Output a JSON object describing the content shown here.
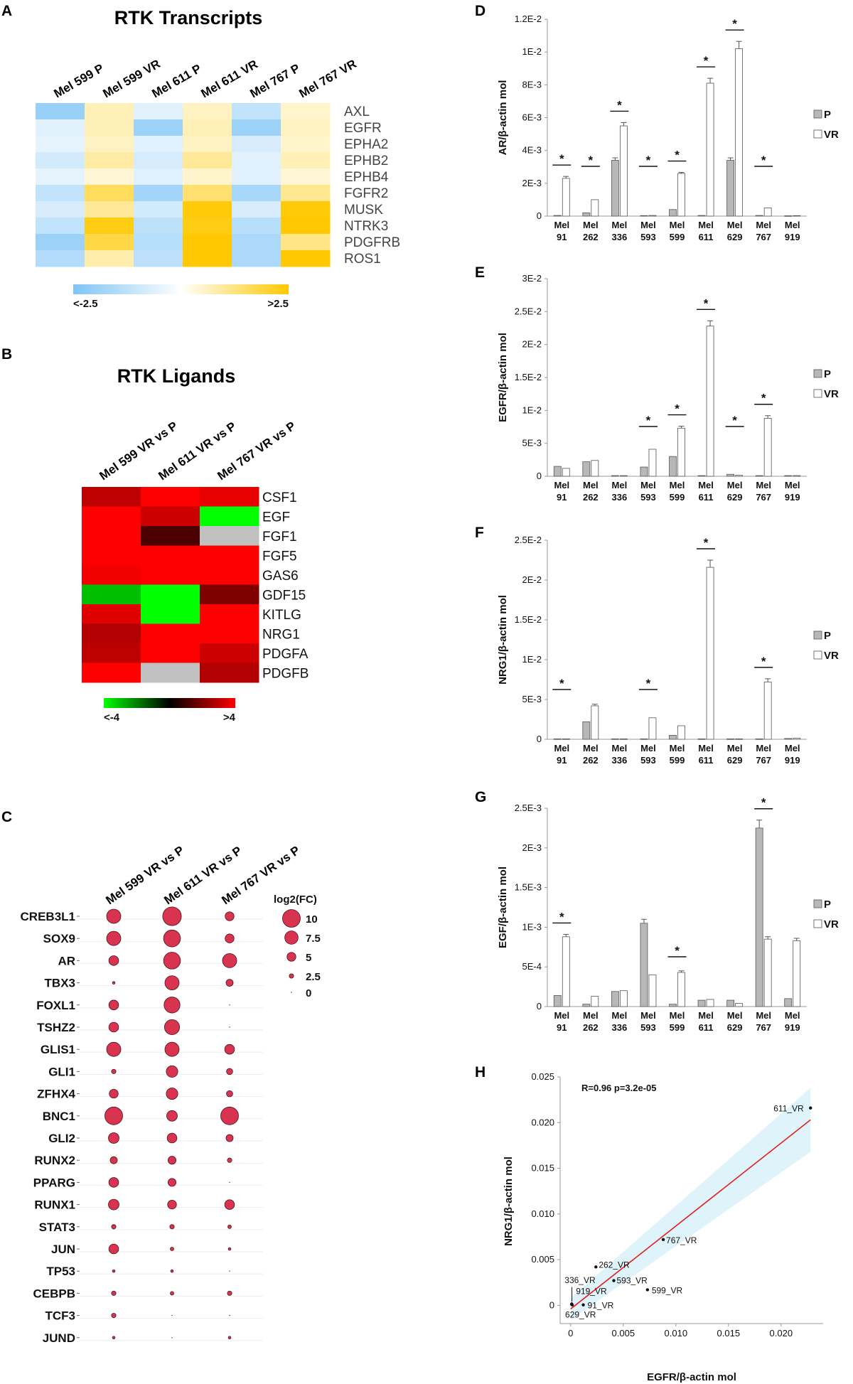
{
  "panel_labels": {
    "A": "A",
    "B": "B",
    "C": "C",
    "D": "D",
    "E": "E",
    "F": "F",
    "G": "G",
    "H": "H"
  },
  "colors": {
    "heat_low_A": "#7ec4f6",
    "heat_mid_A": "#ffffff",
    "heat_high_A": "#ffc800",
    "heat_low_B": "#00ff00",
    "heat_mid_B": "#000000",
    "heat_high_B": "#ff0000",
    "heat_na": "#c0c0c0",
    "bubble": "#d8344f",
    "bar_P": "#b8b8b8",
    "bar_VR": "#ffffff",
    "fit_line": "#e32020",
    "ci_band": "#dff3fb"
  },
  "chart_data": [
    {
      "id": "A",
      "type": "heatmap",
      "title": "RTK Transcripts",
      "columns": [
        "Mel 599 P",
        "Mel 599 VR",
        "Mel 611 P",
        "Mel 611 VR",
        "Mel 767 P",
        "Mel 767 VR"
      ],
      "rows": [
        "AXL",
        "EGFR",
        "EPHA2",
        "EPHB2",
        "EPHB4",
        "FGFR2",
        "MUSK",
        "NTRK3",
        "PDGFRB",
        "ROS1"
      ],
      "values": [
        [
          -2.0,
          0.7,
          -0.6,
          0.6,
          -1.2,
          0.5
        ],
        [
          -0.6,
          0.7,
          -1.9,
          0.7,
          -1.9,
          0.6
        ],
        [
          -0.5,
          0.6,
          -0.6,
          0.6,
          -0.8,
          0.5
        ],
        [
          -0.9,
          0.9,
          -0.8,
          1.0,
          -0.6,
          0.7
        ],
        [
          -0.5,
          0.4,
          -0.6,
          0.5,
          -0.6,
          0.4
        ],
        [
          -1.2,
          1.6,
          -1.8,
          1.4,
          -1.7,
          1.1
        ],
        [
          -0.8,
          1.0,
          -0.9,
          2.4,
          -0.8,
          2.4
        ],
        [
          -1.2,
          2.3,
          -1.3,
          2.3,
          -1.4,
          2.5
        ],
        [
          -1.9,
          1.8,
          -1.4,
          2.5,
          -1.6,
          1.2
        ],
        [
          -1.5,
          0.8,
          -1.3,
          2.5,
          -1.6,
          2.5
        ]
      ],
      "colorbar": {
        "min": -2.5,
        "max": 2.5,
        "min_label": "<-2.5",
        "max_label": ">2.5"
      }
    },
    {
      "id": "B",
      "type": "heatmap",
      "title": "RTK Ligands",
      "columns": [
        "Mel 599 VR vs P",
        "Mel 611 VR vs P",
        "Mel 767 VR vs P"
      ],
      "rows": [
        "CSF1",
        "EGF",
        "FGF1",
        "FGF5",
        "GAS6",
        "GDF15",
        "KITLG",
        "NRG1",
        "PDGFA",
        "PDGFB"
      ],
      "values": [
        [
          3.0,
          4.0,
          3.6
        ],
        [
          4.0,
          3.2,
          -4.0
        ],
        [
          4.0,
          1.2,
          null
        ],
        [
          4.0,
          4.0,
          4.0
        ],
        [
          3.8,
          4.0,
          4.0
        ],
        [
          -3.0,
          -4.0,
          2.0
        ],
        [
          3.5,
          -4.0,
          4.0
        ],
        [
          2.8,
          4.0,
          4.0
        ],
        [
          3.0,
          4.0,
          3.2
        ],
        [
          4.0,
          null,
          2.8
        ]
      ],
      "colorbar": {
        "min": -4,
        "max": 4,
        "min_label": "<-4",
        "max_label": ">4"
      }
    },
    {
      "id": "C",
      "type": "scatter",
      "columns": [
        "Mel 599 VR vs P",
        "Mel 611 VR vs P",
        "Mel 767 VR vs P"
      ],
      "rows": [
        "CREB3L1",
        "SOX9",
        "AR",
        "TBX3",
        "FOXL1",
        "TSHZ2",
        "GLIS1",
        "GLI1",
        "ZFHX4",
        "BNC1",
        "GLI2",
        "RUNX2",
        "PPARG",
        "RUNX1",
        "STAT3",
        "JUN",
        "TP53",
        "CEBPB",
        "TCF3",
        "JUND"
      ],
      "values": [
        [
          8.0,
          10.5,
          5.0
        ],
        [
          8.0,
          9.5,
          5.0
        ],
        [
          5.5,
          9.5,
          8.0
        ],
        [
          1.5,
          8.0,
          4.0
        ],
        [
          5.5,
          9.0,
          0
        ],
        [
          5.5,
          8.5,
          0
        ],
        [
          8.0,
          8.0,
          5.5
        ],
        [
          2.5,
          6.5,
          3.5
        ],
        [
          5.0,
          6.5,
          3.5
        ],
        [
          10.0,
          6.0,
          10.0
        ],
        [
          6.0,
          5.5,
          4.0
        ],
        [
          4.0,
          4.5,
          2.5
        ],
        [
          5.5,
          4.5,
          0
        ],
        [
          6.0,
          5.0,
          5.5
        ],
        [
          2.5,
          2.5,
          2.0
        ],
        [
          5.5,
          2.0,
          1.5
        ],
        [
          1.5,
          1.5,
          0
        ],
        [
          2.5,
          2.0,
          2.5
        ],
        [
          2.5,
          0,
          0
        ],
        [
          1.5,
          0,
          1.5
        ]
      ],
      "legend": {
        "title": "log2(FC)",
        "entries": [
          "10",
          "7.5",
          "5",
          "2.5",
          "0"
        ],
        "sizes": [
          10,
          7.5,
          5,
          2.5,
          0
        ]
      }
    },
    {
      "id": "D",
      "type": "bar",
      "ylabel": "AR/β-actin mol",
      "categories": [
        "91",
        "262",
        "336",
        "593",
        "599",
        "611",
        "629",
        "767",
        "919"
      ],
      "cat_prefix": "Mel",
      "yticks": [
        "0",
        "2E-3",
        "4E-3",
        "6E-3",
        "8E-3",
        "1E-2",
        "1.2E-2"
      ],
      "ylim": [
        0,
        0.012
      ],
      "series": [
        {
          "name": "P",
          "values": [
            4e-05,
            0.0002,
            0.0034,
            3e-05,
            0.0004,
            4e-05,
            0.0034,
            4e-05,
            2e-05
          ],
          "err": [
            0,
            0,
            0.00015,
            0,
            0,
            0,
            0.00015,
            0,
            0
          ]
        },
        {
          "name": "VR",
          "values": [
            0.0023,
            0.001,
            0.0055,
            4e-05,
            0.0026,
            0.0081,
            0.0102,
            0.0005,
            3e-05
          ],
          "err": [
            0.00012,
            0,
            0.0002,
            0,
            6e-05,
            0.0003,
            0.00045,
            0,
            0
          ]
        }
      ],
      "sig": [
        "*",
        "*",
        "*",
        "*",
        "*",
        "*",
        "*",
        "*",
        ""
      ]
    },
    {
      "id": "E",
      "type": "bar",
      "ylabel": "EGFR/β-actin mol",
      "categories": [
        "91",
        "262",
        "336",
        "593",
        "599",
        "611",
        "629",
        "767",
        "919"
      ],
      "cat_prefix": "Mel",
      "yticks": [
        "0",
        "5E-3",
        "1E-2",
        "1.5E-2",
        "2E-2",
        "2.5E-2",
        "3E-2"
      ],
      "ylim": [
        0,
        0.03
      ],
      "series": [
        {
          "name": "P",
          "values": [
            0.0015,
            0.0022,
            0.0001,
            0.0014,
            0.003,
            0.0001,
            0.0003,
            0.0001,
            0.0001
          ],
          "err": [
            0,
            0,
            0,
            0,
            0,
            0,
            0,
            0,
            0
          ]
        },
        {
          "name": "VR",
          "values": [
            0.0012,
            0.0024,
            0.0001,
            0.0041,
            0.0073,
            0.0228,
            0.00015,
            0.0088,
            0.0001
          ],
          "err": [
            0,
            0,
            0,
            0,
            0.0003,
            0.0008,
            0,
            0.0004,
            0
          ]
        }
      ],
      "sig": [
        "",
        "",
        "",
        "*",
        "*",
        "*",
        "*",
        "*",
        ""
      ]
    },
    {
      "id": "F",
      "type": "bar",
      "ylabel": "NRG1/β-actin mol",
      "categories": [
        "91",
        "262",
        "336",
        "593",
        "599",
        "611",
        "629",
        "767",
        "919"
      ],
      "cat_prefix": "Mel",
      "yticks": [
        "0",
        "5E-3",
        "1E-2",
        "1.5E-2",
        "2E-2",
        "2.5E-2"
      ],
      "ylim": [
        0,
        0.025
      ],
      "series": [
        {
          "name": "P",
          "values": [
            5e-05,
            0.0022,
            5e-05,
            5e-05,
            0.0005,
            5e-05,
            5e-05,
            5e-05,
            0.0001
          ],
          "err": [
            0,
            0,
            0,
            0,
            0,
            0,
            0,
            0,
            0
          ]
        },
        {
          "name": "VR",
          "values": [
            5e-05,
            0.0042,
            5e-05,
            0.0027,
            0.0017,
            0.0216,
            5e-05,
            0.0072,
            0.00015
          ],
          "err": [
            0,
            0.0002,
            0,
            0,
            0,
            0.0009,
            0,
            0.0004,
            0
          ]
        }
      ],
      "sig": [
        "*",
        "",
        "",
        "*",
        "",
        "*",
        "",
        "*",
        ""
      ]
    },
    {
      "id": "G",
      "type": "bar",
      "ylabel": "EGF/β-actin mol",
      "categories": [
        "91",
        "262",
        "336",
        "593",
        "599",
        "611",
        "629",
        "767",
        "919"
      ],
      "cat_prefix": "Mel",
      "yticks": [
        "0",
        "5E-4",
        "1E-3",
        "1.5E-3",
        "2E-3",
        "2.5E-3"
      ],
      "ylim": [
        0,
        0.0025
      ],
      "series": [
        {
          "name": "P",
          "values": [
            0.00014,
            3e-05,
            0.00019,
            0.00105,
            3e-05,
            8e-05,
            8e-05,
            0.00225,
            0.0001
          ],
          "err": [
            0,
            0,
            0,
            5e-05,
            0,
            0,
            0,
            0.0001,
            0
          ]
        },
        {
          "name": "VR",
          "values": [
            0.00088,
            0.00013,
            0.0002,
            0.0004,
            0.00043,
            9e-05,
            4e-05,
            0.00085,
            0.00083
          ],
          "err": [
            3e-05,
            0,
            0,
            0,
            2e-05,
            0,
            0,
            3e-05,
            3e-05
          ]
        }
      ],
      "sig": [
        "*",
        "",
        "",
        "",
        "*",
        "",
        "",
        "*",
        ""
      ]
    },
    {
      "id": "H",
      "type": "scatter",
      "xlabel": "EGFR/β-actin mol",
      "ylabel": "NRG1/β-actin mol",
      "annotation": "R=0.96 p=3.2e-05",
      "xlim": [
        -0.001,
        0.024
      ],
      "ylim": [
        -0.002,
        0.025
      ],
      "xticks": [
        "0",
        "0.005",
        "0.010",
        "0.015",
        "0.020"
      ],
      "xtick_values": [
        0,
        0.005,
        0.01,
        0.015,
        0.02
      ],
      "yticks": [
        "0",
        "0.005",
        "0.010",
        "0.015",
        "0.020",
        "0.025"
      ],
      "ytick_values": [
        0,
        0.005,
        0.01,
        0.015,
        0.02,
        0.025
      ],
      "points": [
        {
          "label": "611_VR",
          "x": 0.0228,
          "y": 0.0216
        },
        {
          "label": "767_VR",
          "x": 0.0088,
          "y": 0.0072
        },
        {
          "label": "262_VR",
          "x": 0.0024,
          "y": 0.0042
        },
        {
          "label": "593_VR",
          "x": 0.0041,
          "y": 0.0027
        },
        {
          "label": "599_VR",
          "x": 0.0073,
          "y": 0.0017
        },
        {
          "label": "336_VR",
          "x": 0.0001,
          "y": 0.0001
        },
        {
          "label": "919_VR",
          "x": 0.0001,
          "y": 0.00015
        },
        {
          "label": "91_VR",
          "x": 0.0012,
          "y": 5e-05
        },
        {
          "label": "629_VR",
          "x": 0.00015,
          "y": 5e-05
        }
      ],
      "fit": {
        "x0": 0,
        "y0": -0.0004,
        "x1": 0.0228,
        "y1": 0.0203
      }
    }
  ]
}
